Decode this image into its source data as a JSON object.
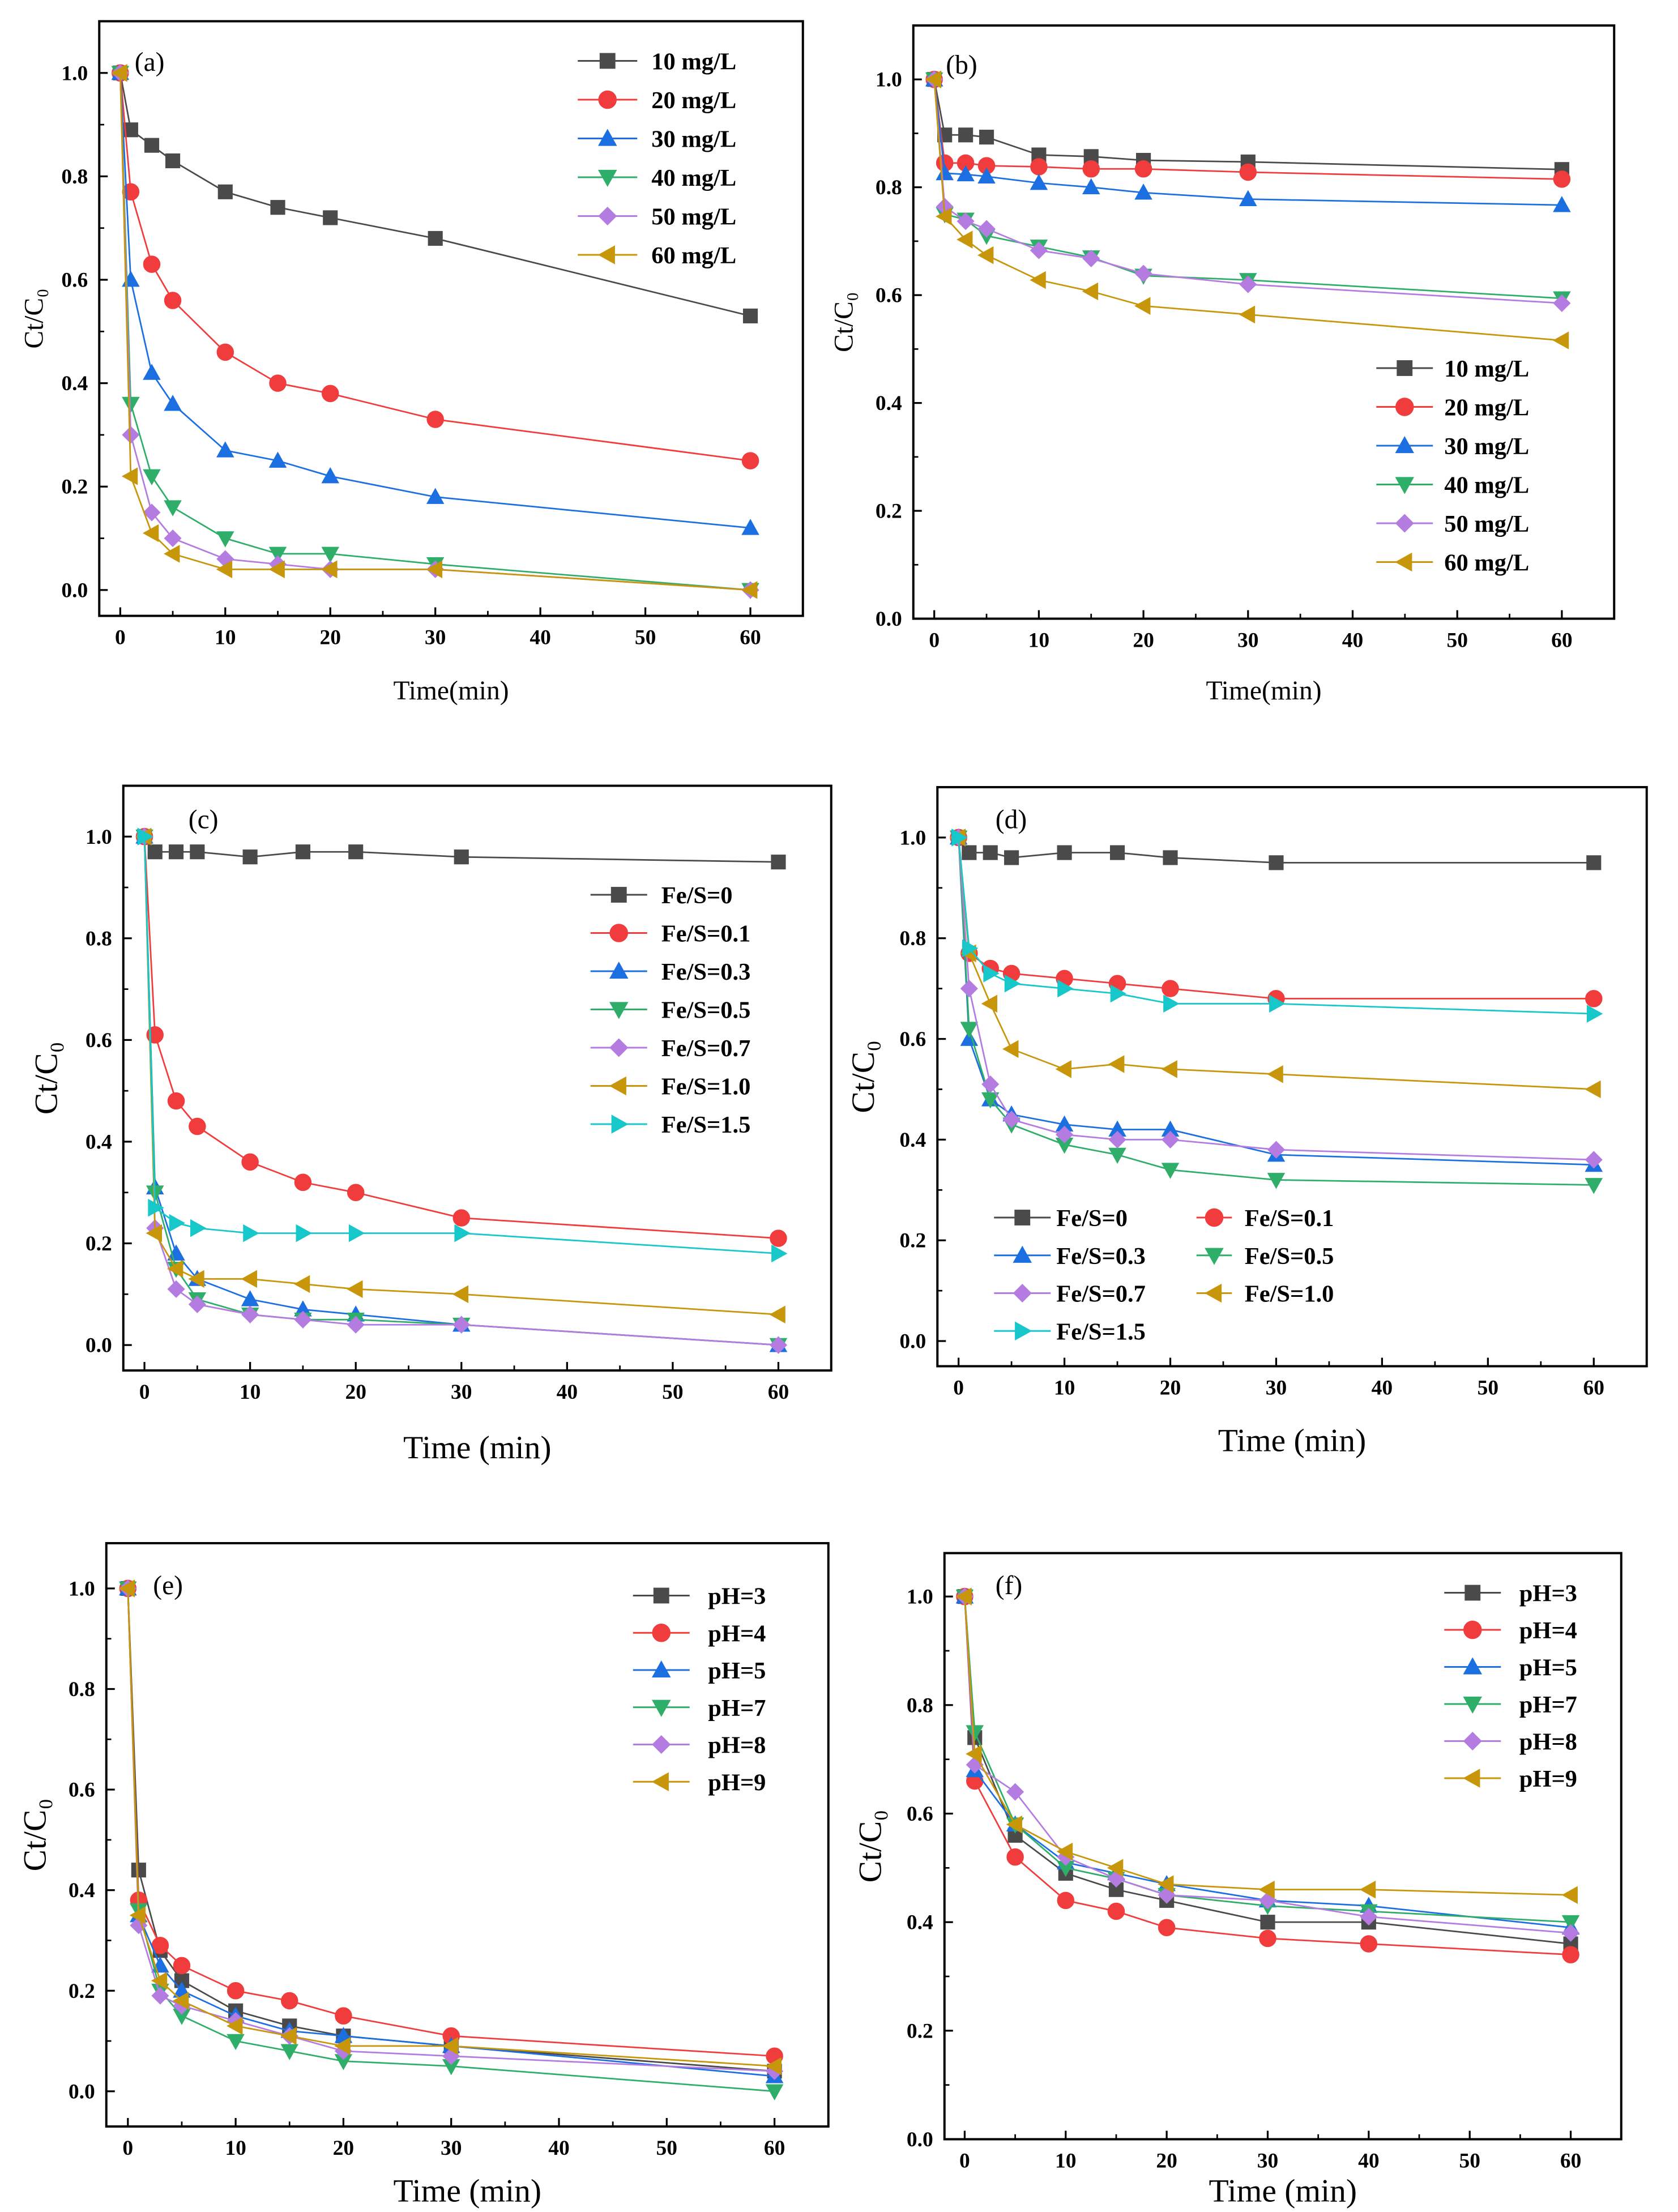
{
  "colors": [
    "#4a4a4a",
    "#f03c3c",
    "#1c6fe0",
    "#2fae6a",
    "#b47be0",
    "#c8960a",
    "#17c7c9"
  ],
  "markers": [
    "square",
    "circle",
    "triangle-up",
    "triangle-down",
    "diamond",
    "triangle-left",
    "triangle-right"
  ],
  "chart_data": [
    {
      "type": "line",
      "panel_label": "(a)",
      "xlabel": "Time(min)",
      "ylabel": "Ct/C₀",
      "xlim": [
        -2,
        65
      ],
      "ylim": [
        -0.05,
        1.1
      ],
      "legend": "top-right",
      "xticks": [
        "0",
        "10",
        "20",
        "30",
        "40",
        "50",
        "60"
      ],
      "yticks": [
        "0.0",
        "0.2",
        "0.4",
        "0.6",
        "0.8",
        "1.0"
      ],
      "x": [
        0,
        1,
        3,
        5,
        10,
        15,
        20,
        30,
        60
      ],
      "series": [
        {
          "name": "10 mg/L",
          "values": [
            1,
            0.89,
            0.86,
            0.83,
            0.77,
            0.74,
            0.72,
            0.68,
            0.53
          ]
        },
        {
          "name": "20 mg/L",
          "values": [
            1,
            0.77,
            0.63,
            0.56,
            0.46,
            0.4,
            0.38,
            0.33,
            0.25
          ]
        },
        {
          "name": "30 mg/L",
          "values": [
            1,
            0.6,
            0.42,
            0.36,
            0.27,
            0.25,
            0.22,
            0.18,
            0.12
          ]
        },
        {
          "name": "40 mg/L",
          "values": [
            1,
            0.36,
            0.22,
            0.16,
            0.1,
            0.07,
            0.07,
            0.05,
            0.0
          ]
        },
        {
          "name": "50 mg/L",
          "values": [
            1,
            0.3,
            0.15,
            0.1,
            0.06,
            0.05,
            0.04,
            0.04,
            0.0
          ]
        },
        {
          "name": "60 mg/L",
          "values": [
            1,
            0.22,
            0.11,
            0.07,
            0.04,
            0.04,
            0.04,
            0.04,
            0.0
          ]
        }
      ]
    },
    {
      "type": "line",
      "panel_label": "(b)",
      "xlabel": "Time(min)",
      "ylabel": "Ct/C₀",
      "xlim": [
        -2,
        65
      ],
      "ylim": [
        0,
        1.1
      ],
      "legend": "center-right",
      "xticks": [
        "0",
        "10",
        "20",
        "30",
        "40",
        "50",
        "60"
      ],
      "yticks": [
        "0.0",
        "0.2",
        "0.4",
        "0.6",
        "0.8",
        "1.0"
      ],
      "x": [
        0,
        1,
        3,
        5,
        10,
        15,
        20,
        30,
        60
      ],
      "series": [
        {
          "name": "10 mg/L",
          "values": [
            1,
            0.897,
            0.897,
            0.893,
            0.86,
            0.857,
            0.85,
            0.847,
            0.833
          ]
        },
        {
          "name": "20 mg/L",
          "values": [
            1,
            0.845,
            0.845,
            0.84,
            0.838,
            0.834,
            0.834,
            0.828,
            0.815
          ]
        },
        {
          "name": "30 mg/L",
          "values": [
            1,
            0.826,
            0.824,
            0.82,
            0.808,
            0.8,
            0.79,
            0.778,
            0.767
          ]
        },
        {
          "name": "40 mg/L",
          "values": [
            1,
            0.75,
            0.74,
            0.71,
            0.69,
            0.67,
            0.636,
            0.628,
            0.594
          ]
        },
        {
          "name": "50 mg/L",
          "values": [
            1,
            0.764,
            0.737,
            0.723,
            0.683,
            0.668,
            0.64,
            0.62,
            0.585
          ]
        },
        {
          "name": "60 mg/L",
          "values": [
            1,
            0.746,
            0.703,
            0.674,
            0.628,
            0.607,
            0.58,
            0.564,
            0.516
          ]
        }
      ]
    },
    {
      "type": "line",
      "panel_label": "(c)",
      "xlabel": "Time (min)",
      "ylabel": "Ct/C₀",
      "xlim": [
        -2,
        65
      ],
      "ylim": [
        -0.05,
        1.1
      ],
      "legend": "top-right",
      "xticks": [
        "0",
        "10",
        "20",
        "30",
        "40",
        "50",
        "60"
      ],
      "yticks": [
        "0.0",
        "0.2",
        "0.4",
        "0.6",
        "0.8",
        "1.0"
      ],
      "x": [
        0,
        1,
        3,
        5,
        10,
        15,
        20,
        30,
        60
      ],
      "series": [
        {
          "name": "Fe/S=0",
          "values": [
            1,
            0.97,
            0.97,
            0.97,
            0.96,
            0.97,
            0.97,
            0.96,
            0.95
          ]
        },
        {
          "name": "Fe/S=0.1",
          "values": [
            1,
            0.61,
            0.48,
            0.43,
            0.36,
            0.32,
            0.3,
            0.25,
            0.21
          ]
        },
        {
          "name": "Fe/S=0.3",
          "values": [
            1,
            0.31,
            0.18,
            0.13,
            0.09,
            0.07,
            0.06,
            0.04,
            0.0
          ]
        },
        {
          "name": "Fe/S=0.5",
          "values": [
            1,
            0.3,
            0.15,
            0.09,
            0.06,
            0.05,
            0.05,
            0.04,
            0.0
          ]
        },
        {
          "name": "Fe/S=0.7",
          "values": [
            1,
            0.23,
            0.11,
            0.08,
            0.06,
            0.05,
            0.04,
            0.04,
            0.0
          ]
        },
        {
          "name": "Fe/S=1.0",
          "values": [
            1,
            0.22,
            0.15,
            0.13,
            0.13,
            0.12,
            0.11,
            0.1,
            0.06
          ]
        },
        {
          "name": "Fe/S=1.5",
          "values": [
            1,
            0.27,
            0.24,
            0.23,
            0.22,
            0.22,
            0.22,
            0.22,
            0.18
          ]
        }
      ]
    },
    {
      "type": "line",
      "panel_label": "(d)",
      "xlabel": "Time (min)",
      "ylabel": "Ct/C₀",
      "xlim": [
        -2,
        65
      ],
      "ylim": [
        -0.05,
        1.1
      ],
      "legend": "bottom-left",
      "xticks": [
        "0",
        "10",
        "20",
        "30",
        "40",
        "50",
        "60"
      ],
      "yticks": [
        "0.0",
        "0.2",
        "0.4",
        "0.6",
        "0.8",
        "1.0"
      ],
      "x": [
        0,
        1,
        3,
        5,
        10,
        15,
        20,
        30,
        60
      ],
      "series": [
        {
          "name": "Fe/S=0",
          "values": [
            1,
            0.97,
            0.97,
            0.96,
            0.97,
            0.97,
            0.96,
            0.95,
            0.95
          ]
        },
        {
          "name": "Fe/S=0.1",
          "values": [
            1,
            0.77,
            0.74,
            0.73,
            0.72,
            0.71,
            0.7,
            0.68,
            0.68
          ]
        },
        {
          "name": "Fe/S=0.3",
          "values": [
            1,
            0.6,
            0.48,
            0.45,
            0.43,
            0.42,
            0.42,
            0.37,
            0.35
          ]
        },
        {
          "name": "Fe/S=0.5",
          "values": [
            1,
            0.62,
            0.48,
            0.43,
            0.39,
            0.37,
            0.34,
            0.32,
            0.31
          ]
        },
        {
          "name": "Fe/S=0.7",
          "values": [
            1,
            0.7,
            0.51,
            0.44,
            0.41,
            0.4,
            0.4,
            0.38,
            0.36
          ]
        },
        {
          "name": "Fe/S=1.0",
          "values": [
            1,
            0.77,
            0.67,
            0.58,
            0.54,
            0.55,
            0.54,
            0.53,
            0.5
          ]
        },
        {
          "name": "Fe/S=1.5",
          "values": [
            1,
            0.78,
            0.73,
            0.71,
            0.7,
            0.69,
            0.67,
            0.67,
            0.65
          ]
        }
      ]
    },
    {
      "type": "line",
      "panel_label": "(e)",
      "xlabel": "Time (min)",
      "ylabel": "Ct/C₀",
      "xlim": [
        -2,
        65
      ],
      "ylim": [
        -0.07,
        1.09
      ],
      "legend": "top-right",
      "xticks": [
        "0",
        "10",
        "20",
        "30",
        "40",
        "50",
        "60"
      ],
      "yticks": [
        "0.0",
        "0.2",
        "0.4",
        "0.6",
        "0.8",
        "1.0"
      ],
      "x": [
        0,
        1,
        3,
        5,
        10,
        15,
        20,
        30,
        60
      ],
      "series": [
        {
          "name": "pH=3",
          "values": [
            1,
            0.44,
            0.28,
            0.22,
            0.16,
            0.13,
            0.11,
            0.09,
            0.04
          ]
        },
        {
          "name": "pH=4",
          "values": [
            1,
            0.38,
            0.29,
            0.25,
            0.2,
            0.18,
            0.15,
            0.11,
            0.07
          ]
        },
        {
          "name": "pH=5",
          "values": [
            1,
            0.35,
            0.25,
            0.2,
            0.15,
            0.12,
            0.11,
            0.09,
            0.03
          ]
        },
        {
          "name": "pH=7",
          "values": [
            1,
            0.36,
            0.2,
            0.15,
            0.1,
            0.08,
            0.06,
            0.05,
            0.0
          ]
        },
        {
          "name": "pH=8",
          "values": [
            1,
            0.33,
            0.19,
            0.17,
            0.14,
            0.11,
            0.08,
            0.07,
            0.04
          ]
        },
        {
          "name": "pH=9",
          "values": [
            1,
            0.35,
            0.22,
            0.18,
            0.13,
            0.11,
            0.09,
            0.09,
            0.05
          ]
        }
      ]
    },
    {
      "type": "line",
      "panel_label": "(f)",
      "xlabel": "Time (min)",
      "ylabel": "Ct/C₀",
      "xlim": [
        -2,
        65
      ],
      "ylim": [
        0,
        1.08
      ],
      "legend": "top-right",
      "xticks": [
        "0",
        "10",
        "20",
        "30",
        "40",
        "50",
        "60"
      ],
      "yticks": [
        "0.0",
        "0.2",
        "0.4",
        "0.6",
        "0.8",
        "1.0"
      ],
      "x": [
        0,
        1,
        5,
        10,
        15,
        20,
        30,
        40,
        60
      ],
      "series": [
        {
          "name": "pH=3",
          "values": [
            1,
            0.74,
            0.56,
            0.49,
            0.46,
            0.44,
            0.4,
            0.4,
            0.36
          ]
        },
        {
          "name": "pH=4",
          "values": [
            1,
            0.66,
            0.52,
            0.44,
            0.42,
            0.39,
            0.37,
            0.36,
            0.34
          ]
        },
        {
          "name": "pH=5",
          "values": [
            1,
            0.68,
            0.58,
            0.51,
            0.49,
            0.47,
            0.44,
            0.43,
            0.39
          ]
        },
        {
          "name": "pH=7",
          "values": [
            1,
            0.75,
            0.58,
            0.5,
            0.48,
            0.45,
            0.43,
            0.42,
            0.4
          ]
        },
        {
          "name": "pH=8",
          "values": [
            1,
            0.69,
            0.64,
            0.52,
            0.48,
            0.45,
            0.44,
            0.41,
            0.38
          ]
        },
        {
          "name": "pH=9",
          "values": [
            1,
            0.71,
            0.58,
            0.53,
            0.5,
            0.47,
            0.46,
            0.46,
            0.45
          ]
        }
      ]
    }
  ]
}
